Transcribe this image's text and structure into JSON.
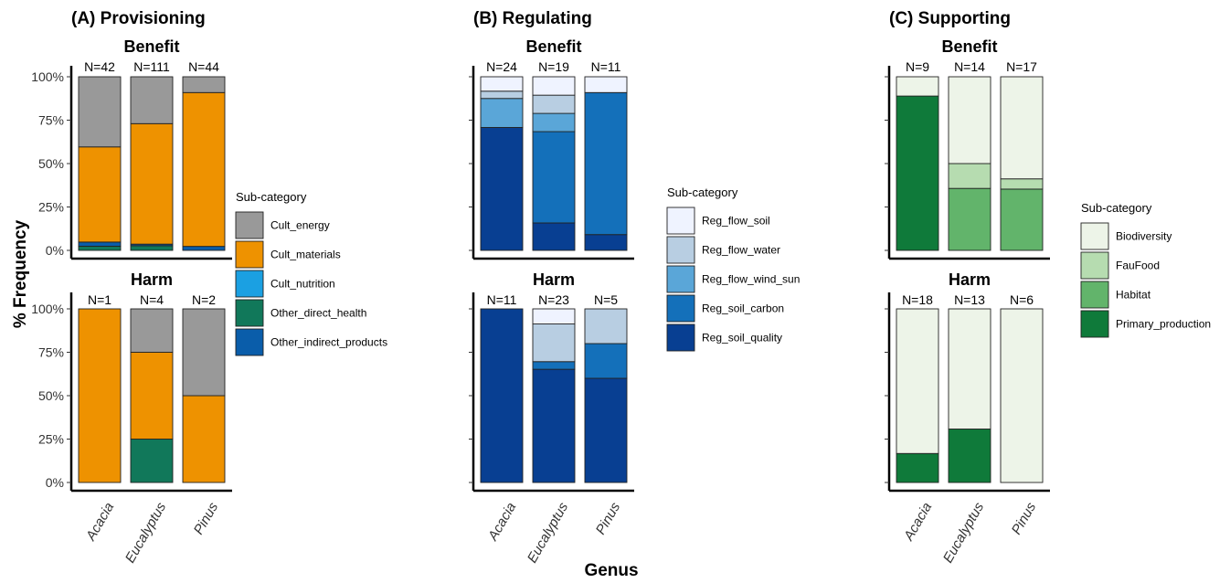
{
  "chart_data": {
    "type": "bar",
    "xlabel": "Genus",
    "ylabel": "% Frequency",
    "ylim": [
      0,
      100
    ],
    "yticks": [
      "0%",
      "25%",
      "50%",
      "75%",
      "100%"
    ],
    "legend_title": "Sub-category",
    "legend_placement": "right of each panel",
    "panels": [
      {
        "title": "(A) Provisioning",
        "legend": [
          {
            "name": "Cult_energy",
            "color": "#999999"
          },
          {
            "name": "Cult_materials",
            "color": "#EE9200"
          },
          {
            "name": "Cult_nutrition",
            "color": "#1BA0E2"
          },
          {
            "name": "Other_direct_health",
            "color": "#11785A"
          },
          {
            "name": "Other_indirect_products",
            "color": "#0A5DAA"
          }
        ],
        "facets": [
          {
            "title": "Benefit",
            "bars": [
              {
                "category": "Acacia",
                "n": "N=42",
                "segments": [
                  {
                    "series": "Other_direct_health",
                    "value": 2.4
                  },
                  {
                    "series": "Other_indirect_products",
                    "value": 2.4
                  },
                  {
                    "series": "Cult_materials",
                    "value": 54.8
                  },
                  {
                    "series": "Cult_energy",
                    "value": 40.4
                  }
                ]
              },
              {
                "category": "Eucalyptus",
                "n": "N=111",
                "segments": [
                  {
                    "series": "Other_direct_health",
                    "value": 2.7
                  },
                  {
                    "series": "Other_indirect_products",
                    "value": 0.9
                  },
                  {
                    "series": "Cult_materials",
                    "value": 69.4
                  },
                  {
                    "series": "Cult_energy",
                    "value": 27.0
                  }
                ]
              },
              {
                "category": "Pinus",
                "n": "N=44",
                "segments": [
                  {
                    "series": "Other_indirect_products",
                    "value": 2.3
                  },
                  {
                    "series": "Cult_materials",
                    "value": 88.6
                  },
                  {
                    "series": "Cult_energy",
                    "value": 9.1
                  }
                ]
              }
            ]
          },
          {
            "title": "Harm",
            "bars": [
              {
                "category": "Acacia",
                "n": "N=1",
                "segments": [
                  {
                    "series": "Cult_materials",
                    "value": 100
                  }
                ]
              },
              {
                "category": "Eucalyptus",
                "n": "N=4",
                "segments": [
                  {
                    "series": "Other_direct_health",
                    "value": 25
                  },
                  {
                    "series": "Cult_materials",
                    "value": 50
                  },
                  {
                    "series": "Cult_energy",
                    "value": 25
                  }
                ]
              },
              {
                "category": "Pinus",
                "n": "N=2",
                "segments": [
                  {
                    "series": "Cult_materials",
                    "value": 50
                  },
                  {
                    "series": "Cult_energy",
                    "value": 50
                  }
                ]
              }
            ]
          }
        ]
      },
      {
        "title": "(B) Regulating",
        "legend": [
          {
            "name": "Reg_flow_soil",
            "color": "#EFF3FF"
          },
          {
            "name": "Reg_flow_water",
            "color": "#B8CEE2"
          },
          {
            "name": "Reg_flow_wind_sun",
            "color": "#5AA6D8"
          },
          {
            "name": "Reg_soil_carbon",
            "color": "#1470BA"
          },
          {
            "name": "Reg_soil_quality",
            "color": "#083F92"
          }
        ],
        "facets": [
          {
            "title": "Benefit",
            "bars": [
              {
                "category": "Acacia",
                "n": "N=24",
                "segments": [
                  {
                    "series": "Reg_soil_quality",
                    "value": 70.8
                  },
                  {
                    "series": "Reg_flow_wind_sun",
                    "value": 16.7
                  },
                  {
                    "series": "Reg_flow_water",
                    "value": 4.2
                  },
                  {
                    "series": "Reg_flow_soil",
                    "value": 8.3
                  }
                ]
              },
              {
                "category": "Eucalyptus",
                "n": "N=19",
                "segments": [
                  {
                    "series": "Reg_soil_quality",
                    "value": 15.8
                  },
                  {
                    "series": "Reg_soil_carbon",
                    "value": 52.6
                  },
                  {
                    "series": "Reg_flow_wind_sun",
                    "value": 10.5
                  },
                  {
                    "series": "Reg_flow_water",
                    "value": 10.5
                  },
                  {
                    "series": "Reg_flow_soil",
                    "value": 10.6
                  }
                ]
              },
              {
                "category": "Pinus",
                "n": "N=11",
                "segments": [
                  {
                    "series": "Reg_soil_quality",
                    "value": 9.1
                  },
                  {
                    "series": "Reg_soil_carbon",
                    "value": 81.8
                  },
                  {
                    "series": "Reg_flow_soil",
                    "value": 9.1
                  }
                ]
              }
            ]
          },
          {
            "title": "Harm",
            "bars": [
              {
                "category": "Acacia",
                "n": "N=11",
                "segments": [
                  {
                    "series": "Reg_soil_quality",
                    "value": 100
                  }
                ]
              },
              {
                "category": "Eucalyptus",
                "n": "N=23",
                "segments": [
                  {
                    "series": "Reg_soil_quality",
                    "value": 65.2
                  },
                  {
                    "series": "Reg_soil_carbon",
                    "value": 4.4
                  },
                  {
                    "series": "Reg_flow_water",
                    "value": 21.7
                  },
                  {
                    "series": "Reg_flow_soil",
                    "value": 8.7
                  }
                ]
              },
              {
                "category": "Pinus",
                "n": "N=5",
                "segments": [
                  {
                    "series": "Reg_soil_quality",
                    "value": 60
                  },
                  {
                    "series": "Reg_soil_carbon",
                    "value": 20
                  },
                  {
                    "series": "Reg_flow_water",
                    "value": 20
                  }
                ]
              }
            ]
          }
        ]
      },
      {
        "title": "(C) Supporting",
        "legend": [
          {
            "name": "Biodiversity",
            "color": "#EDF4E8"
          },
          {
            "name": "FauFood",
            "color": "#B6DCB0"
          },
          {
            "name": "Habitat",
            "color": "#62B46B"
          },
          {
            "name": "Primary_production",
            "color": "#0F7A3A"
          }
        ],
        "facets": [
          {
            "title": "Benefit",
            "bars": [
              {
                "category": "Acacia",
                "n": "N=9",
                "segments": [
                  {
                    "series": "Primary_production",
                    "value": 88.9
                  },
                  {
                    "series": "Biodiversity",
                    "value": 11.1
                  }
                ]
              },
              {
                "category": "Eucalyptus",
                "n": "N=14",
                "segments": [
                  {
                    "series": "Habitat",
                    "value": 35.7
                  },
                  {
                    "series": "FauFood",
                    "value": 14.3
                  },
                  {
                    "series": "Biodiversity",
                    "value": 50.0
                  }
                ]
              },
              {
                "category": "Pinus",
                "n": "N=17",
                "segments": [
                  {
                    "series": "Habitat",
                    "value": 35.3
                  },
                  {
                    "series": "FauFood",
                    "value": 5.9
                  },
                  {
                    "series": "Biodiversity",
                    "value": 58.8
                  }
                ]
              }
            ]
          },
          {
            "title": "Harm",
            "bars": [
              {
                "category": "Acacia",
                "n": "N=18",
                "segments": [
                  {
                    "series": "Primary_production",
                    "value": 16.7
                  },
                  {
                    "series": "Biodiversity",
                    "value": 83.3
                  }
                ]
              },
              {
                "category": "Eucalyptus",
                "n": "N=13",
                "segments": [
                  {
                    "series": "Primary_production",
                    "value": 30.8
                  },
                  {
                    "series": "Biodiversity",
                    "value": 69.2
                  }
                ]
              },
              {
                "category": "Pinus",
                "n": "N=6",
                "segments": [
                  {
                    "series": "Biodiversity",
                    "value": 100
                  }
                ]
              }
            ]
          }
        ]
      }
    ]
  }
}
